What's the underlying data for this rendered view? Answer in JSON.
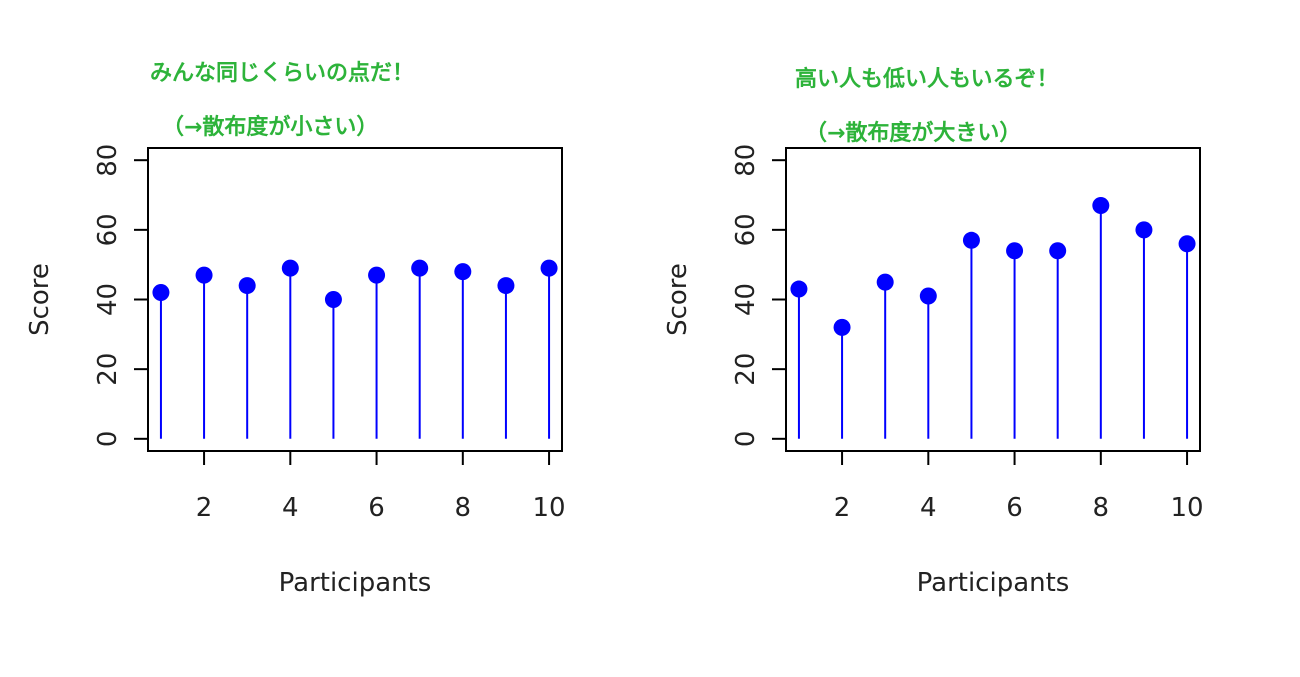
{
  "chart_data": [
    {
      "type": "scatter",
      "style": "lollipop",
      "annotation_line1": "みんな同じくらいの点だ！",
      "annotation_line2": "（→散布度が小さい）",
      "xlabel": "Participants",
      "ylabel": "Score",
      "x": [
        1,
        2,
        3,
        4,
        5,
        6,
        7,
        8,
        9,
        10
      ],
      "values": [
        42,
        47,
        44,
        49,
        40,
        47,
        49,
        48,
        44,
        49
      ],
      "x_ticks": [
        "2",
        "4",
        "6",
        "8",
        "10"
      ],
      "y_ticks": [
        "0",
        "20",
        "40",
        "60",
        "80"
      ],
      "xlim": [
        0.7,
        10.3
      ],
      "ylim": [
        -3.5,
        83.5
      ],
      "color": "#0000ff",
      "annotation_color": "#2db33a"
    },
    {
      "type": "scatter",
      "style": "lollipop",
      "annotation_line1": "高い人も低い人もいるぞ！",
      "annotation_line2": "（→散布度が大きい）",
      "xlabel": "Participants",
      "ylabel": "Score",
      "x": [
        1,
        2,
        3,
        4,
        5,
        6,
        7,
        8,
        9,
        10
      ],
      "values": [
        43,
        32,
        45,
        41,
        57,
        54,
        54,
        67,
        60,
        56
      ],
      "x_ticks": [
        "2",
        "4",
        "6",
        "8",
        "10"
      ],
      "y_ticks": [
        "0",
        "20",
        "40",
        "60",
        "80"
      ],
      "xlim": [
        0.7,
        10.3
      ],
      "ylim": [
        -3.5,
        83.5
      ],
      "color": "#0000ff",
      "annotation_color": "#2db33a"
    }
  ]
}
